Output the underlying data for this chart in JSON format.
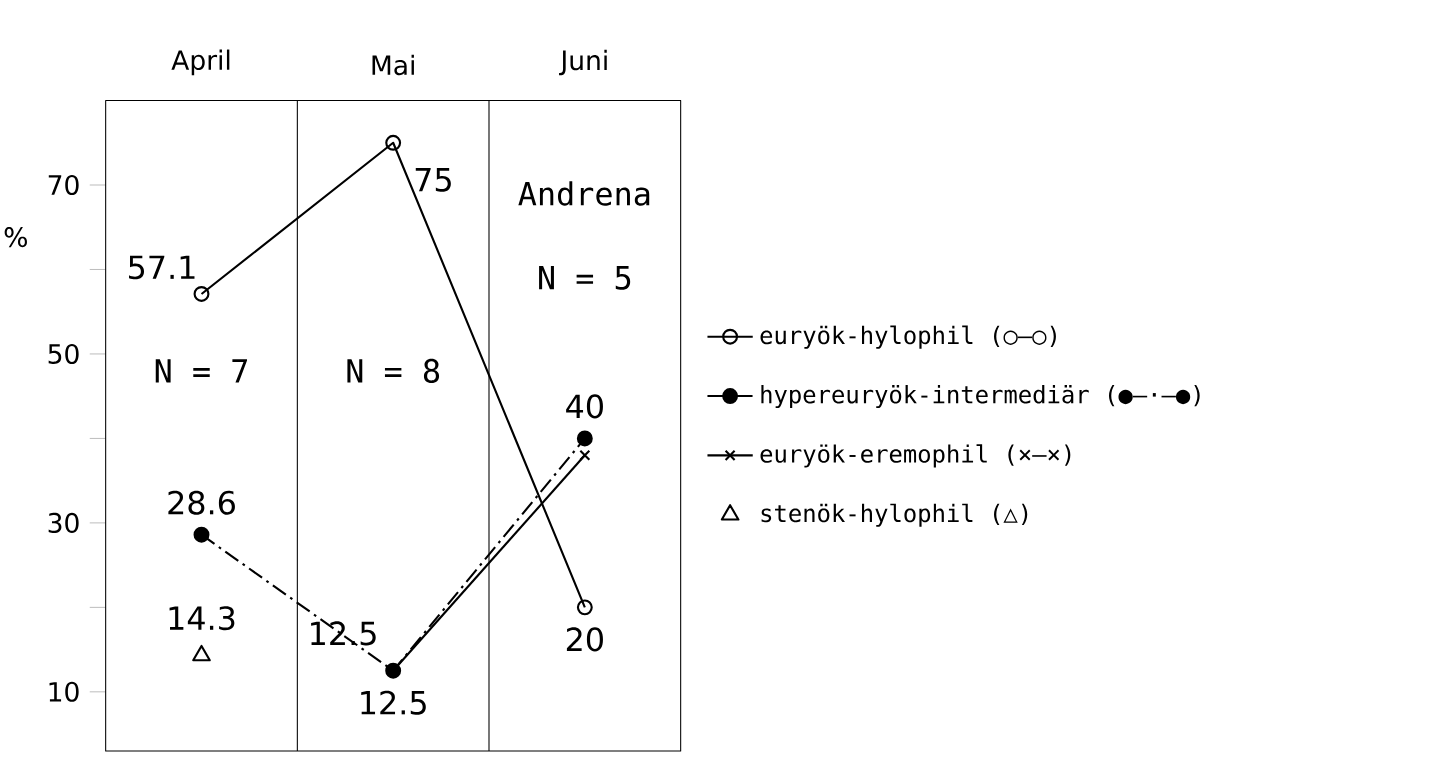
{
  "chart_data": {
    "type": "line",
    "categories": [
      "April",
      "Mai",
      "Juni"
    ],
    "ylabel": "%",
    "ylim": [
      3,
      80
    ],
    "yticks": [
      10,
      {
        "value": 20,
        "label": null
      },
      30,
      {
        "value": 40,
        "label": null
      },
      50,
      {
        "value": 60,
        "label": null
      },
      70
    ],
    "series": [
      {
        "name": "euryök-hylophil (○—○)",
        "color": "#000000",
        "marker": "circle_open",
        "line_style": "solid",
        "values": [
          57.1,
          75,
          20
        ],
        "value_labels": [
          "57.1",
          "75",
          "20"
        ]
      },
      {
        "name": "hypereuryök-intermediär (●–·–●)",
        "color": "#000000",
        "marker": "circle",
        "line_style": "dashdot",
        "values": [
          28.6,
          12.5,
          40
        ],
        "value_labels": [
          "28.6",
          "12.5",
          "40"
        ]
      },
      {
        "name": "euryök-eremophil (×—×)",
        "color": "#000000",
        "marker": "cross",
        "line_style": "solid",
        "values": [
          null,
          12.5,
          38
        ],
        "value_labels": [
          null,
          "12.5",
          null
        ]
      },
      {
        "name": "stenök-hylophil (△)",
        "type": "scatter",
        "color": "#000000",
        "marker": "triangle",
        "values": [
          14.3,
          null,
          null
        ],
        "value_labels": [
          "14.3",
          null,
          null
        ]
      }
    ],
    "annotations": [
      "Andrena",
      "N = 7",
      "N = 8",
      "N = 5"
    ],
    "legend": "right",
    "grid": false
  }
}
